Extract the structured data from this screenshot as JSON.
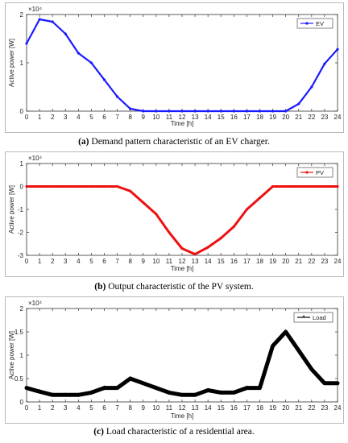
{
  "chart_data": [
    {
      "type": "line",
      "ylabel": "Active power [W]",
      "xlabel": "Time [h]",
      "exponent_label": "×10⁴",
      "x": [
        0,
        1,
        2,
        3,
        4,
        5,
        6,
        7,
        8,
        9,
        10,
        11,
        12,
        13,
        14,
        15,
        16,
        17,
        18,
        19,
        20,
        21,
        22,
        23,
        24
      ],
      "series": [
        {
          "name": "EV",
          "color": "#1a1aff",
          "marker": "dot",
          "line_width": 2.2,
          "values": [
            1.4,
            1.9,
            1.85,
            1.6,
            1.2,
            1.0,
            0.65,
            0.3,
            0.05,
            0,
            0,
            0,
            0,
            0,
            0,
            0,
            0,
            0,
            0,
            0,
            0,
            0.15,
            0.5,
            0.98,
            1.28
          ]
        }
      ],
      "ylim": [
        0,
        2
      ],
      "yticks": [
        0,
        1,
        2
      ],
      "caption_tag": "(a)",
      "caption_text": " Demand pattern characteristic of an EV charger."
    },
    {
      "type": "line",
      "ylabel": "Active power [W]",
      "xlabel": "Time [h]",
      "exponent_label": "×10⁴",
      "x": [
        0,
        1,
        2,
        3,
        4,
        5,
        6,
        7,
        8,
        9,
        10,
        11,
        12,
        13,
        14,
        15,
        16,
        17,
        18,
        19,
        20,
        21,
        22,
        23,
        24
      ],
      "series": [
        {
          "name": "PV",
          "color": "#ee1111",
          "marker": "dot",
          "line_width": 3,
          "values": [
            0,
            0,
            0,
            0,
            0,
            0,
            0,
            0,
            -0.2,
            -0.7,
            -1.2,
            -2.0,
            -2.7,
            -2.95,
            -2.65,
            -2.25,
            -1.75,
            -1.0,
            -0.5,
            0,
            0,
            0,
            0,
            0,
            0
          ]
        }
      ],
      "ylim": [
        -3,
        1
      ],
      "yticks": [
        -3,
        -2,
        -1,
        0,
        1
      ],
      "caption_tag": "(b)",
      "caption_text": " Output characteristic of the PV system."
    },
    {
      "type": "line",
      "ylabel": "Active power [W]",
      "xlabel": "Time [h]",
      "exponent_label": "×10⁴",
      "x": [
        0,
        0.25,
        1,
        2,
        3,
        4,
        5,
        6,
        7,
        8,
        9,
        10,
        11,
        12,
        13,
        14,
        15,
        16,
        17,
        18,
        19,
        20,
        21,
        22,
        23,
        24
      ],
      "series": [
        {
          "name": "Load",
          "color": "#000000",
          "marker": "star",
          "line_width": 5,
          "values": [
            0.3,
            0.28,
            0.22,
            0.15,
            0.15,
            0.15,
            0.2,
            0.3,
            0.3,
            0.5,
            0.4,
            0.3,
            0.2,
            0.15,
            0.15,
            0.25,
            0.2,
            0.2,
            0.3,
            0.3,
            1.2,
            1.5,
            1.1,
            0.7,
            0.4,
            0.4
          ]
        }
      ],
      "ylim": [
        0,
        2
      ],
      "yticks": [
        0,
        0.5,
        1,
        1.5,
        2
      ],
      "caption_tag": "(c)",
      "caption_text": " Load characteristic of a residential area."
    }
  ]
}
